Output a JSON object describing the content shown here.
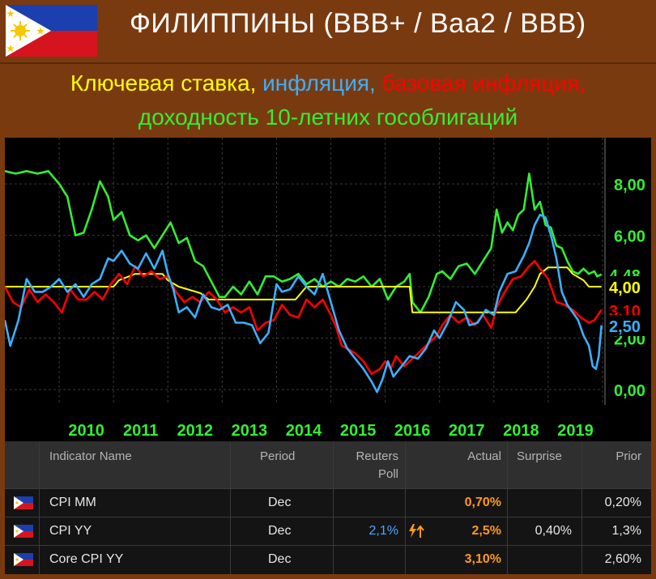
{
  "header": {
    "title": "ФИЛИППИНЫ (BBB+ / Baa2 / BBB)"
  },
  "subtitle": {
    "part1": "Ключевая ставка, ",
    "part2": "инфляция, ",
    "part3": "базовая инфляция,",
    "part4": "доходность 10-летних гособлигаций",
    "colors": {
      "part1": "#ffff00",
      "part2": "#3ab0ff",
      "part3": "#ff0000",
      "part4": "#33ee33"
    }
  },
  "chart_data": {
    "type": "line",
    "x_labels": [
      "2010",
      "2011",
      "2012",
      "2013",
      "2014",
      "2015",
      "2016",
      "2017",
      "2018",
      "2019"
    ],
    "y_ticks": [
      "8,00",
      "6,00",
      "4,00",
      "2,00",
      "0,00"
    ],
    "ylim": [
      -0.6,
      9.8
    ],
    "xlim": [
      2009.0,
      2020.0
    ],
    "grid": true,
    "end_labels": [
      {
        "text": "4,48",
        "color": "#33ee33",
        "value": 4.48
      },
      {
        "text": "4,00",
        "color": "#ffff00",
        "value": 4.0
      },
      {
        "text": "3,10",
        "color": "#ff0000",
        "value": 3.1
      },
      {
        "text": "2,50",
        "color": "#3ab0ff",
        "value": 2.5
      }
    ],
    "series": [
      {
        "color": "#33ee33",
        "points": [
          [
            2009.0,
            8.5
          ],
          [
            2009.2,
            8.4
          ],
          [
            2009.4,
            8.5
          ],
          [
            2009.6,
            8.4
          ],
          [
            2009.8,
            8.5
          ],
          [
            2010.0,
            8.0
          ],
          [
            2010.15,
            7.5
          ],
          [
            2010.3,
            6.0
          ],
          [
            2010.45,
            6.1
          ],
          [
            2010.6,
            7.0
          ],
          [
            2010.75,
            8.1
          ],
          [
            2010.9,
            7.5
          ],
          [
            2011.0,
            6.6
          ],
          [
            2011.15,
            6.9
          ],
          [
            2011.3,
            6.0
          ],
          [
            2011.45,
            5.8
          ],
          [
            2011.6,
            6.0
          ],
          [
            2011.75,
            5.5
          ],
          [
            2011.9,
            6.0
          ],
          [
            2012.05,
            6.5
          ],
          [
            2012.2,
            5.7
          ],
          [
            2012.35,
            5.9
          ],
          [
            2012.5,
            5.0
          ],
          [
            2012.65,
            4.8
          ],
          [
            2012.8,
            4.2
          ],
          [
            2012.95,
            3.6
          ],
          [
            2013.05,
            3.6
          ],
          [
            2013.2,
            4.0
          ],
          [
            2013.35,
            3.7
          ],
          [
            2013.5,
            4.2
          ],
          [
            2013.65,
            3.7
          ],
          [
            2013.8,
            4.4
          ],
          [
            2013.95,
            4.4
          ],
          [
            2014.1,
            4.2
          ],
          [
            2014.25,
            4.3
          ],
          [
            2014.4,
            4.5
          ],
          [
            2014.55,
            4.1
          ],
          [
            2014.7,
            4.3
          ],
          [
            2014.85,
            4.0
          ],
          [
            2015.0,
            4.2
          ],
          [
            2015.15,
            4.0
          ],
          [
            2015.3,
            4.3
          ],
          [
            2015.45,
            4.2
          ],
          [
            2015.6,
            4.4
          ],
          [
            2015.75,
            4.0
          ],
          [
            2015.9,
            4.3
          ],
          [
            2016.05,
            3.5
          ],
          [
            2016.2,
            4.0
          ],
          [
            2016.35,
            4.2
          ],
          [
            2016.45,
            4.5
          ],
          [
            2016.5,
            3.4
          ],
          [
            2016.65,
            3.0
          ],
          [
            2016.8,
            3.6
          ],
          [
            2016.95,
            4.5
          ],
          [
            2017.05,
            4.6
          ],
          [
            2017.2,
            4.3
          ],
          [
            2017.35,
            4.8
          ],
          [
            2017.5,
            4.9
          ],
          [
            2017.65,
            4.5
          ],
          [
            2017.8,
            5.0
          ],
          [
            2017.95,
            5.5
          ],
          [
            2018.05,
            7.0
          ],
          [
            2018.15,
            6.1
          ],
          [
            2018.25,
            6.5
          ],
          [
            2018.35,
            6.2
          ],
          [
            2018.45,
            6.8
          ],
          [
            2018.55,
            7.0
          ],
          [
            2018.65,
            8.4
          ],
          [
            2018.75,
            7.0
          ],
          [
            2018.85,
            7.3
          ],
          [
            2018.95,
            6.4
          ],
          [
            2019.05,
            6.3
          ],
          [
            2019.15,
            5.6
          ],
          [
            2019.25,
            5.5
          ],
          [
            2019.35,
            5.0
          ],
          [
            2019.45,
            4.6
          ],
          [
            2019.55,
            4.5
          ],
          [
            2019.65,
            4.7
          ],
          [
            2019.75,
            4.5
          ],
          [
            2019.85,
            4.6
          ],
          [
            2019.9,
            4.4
          ],
          [
            2019.98,
            4.48
          ]
        ]
      },
      {
        "color": "#ffff00",
        "points": [
          [
            2009.0,
            4.0
          ],
          [
            2011.0,
            4.0
          ],
          [
            2011.1,
            4.25
          ],
          [
            2011.4,
            4.5
          ],
          [
            2011.7,
            4.5
          ],
          [
            2011.9,
            4.5
          ],
          [
            2012.0,
            4.25
          ],
          [
            2012.2,
            4.0
          ],
          [
            2012.6,
            3.75
          ],
          [
            2012.75,
            3.5
          ],
          [
            2014.35,
            3.5
          ],
          [
            2014.45,
            3.75
          ],
          [
            2014.55,
            4.0
          ],
          [
            2016.45,
            4.0
          ],
          [
            2016.5,
            3.0
          ],
          [
            2018.4,
            3.0
          ],
          [
            2018.5,
            3.25
          ],
          [
            2018.6,
            3.5
          ],
          [
            2018.75,
            4.0
          ],
          [
            2018.85,
            4.5
          ],
          [
            2019.0,
            4.75
          ],
          [
            2019.35,
            4.75
          ],
          [
            2019.45,
            4.5
          ],
          [
            2019.65,
            4.25
          ],
          [
            2019.75,
            4.0
          ],
          [
            2019.98,
            4.0
          ]
        ]
      },
      {
        "color": "#ff0000",
        "points": [
          [
            2009.0,
            4.0
          ],
          [
            2009.15,
            3.4
          ],
          [
            2009.3,
            3.2
          ],
          [
            2009.45,
            3.9
          ],
          [
            2009.6,
            3.4
          ],
          [
            2009.75,
            3.7
          ],
          [
            2009.9,
            3.4
          ],
          [
            2010.05,
            3.0
          ],
          [
            2010.2,
            3.9
          ],
          [
            2010.35,
            3.5
          ],
          [
            2010.5,
            3.5
          ],
          [
            2010.65,
            3.8
          ],
          [
            2010.8,
            3.5
          ],
          [
            2010.95,
            4.1
          ],
          [
            2011.1,
            4.5
          ],
          [
            2011.25,
            4.1
          ],
          [
            2011.4,
            4.8
          ],
          [
            2011.55,
            4.4
          ],
          [
            2011.7,
            4.6
          ],
          [
            2011.85,
            4.3
          ],
          [
            2012.0,
            4.4
          ],
          [
            2012.15,
            3.8
          ],
          [
            2012.3,
            3.4
          ],
          [
            2012.45,
            3.6
          ],
          [
            2012.6,
            3.4
          ],
          [
            2012.75,
            3.8
          ],
          [
            2012.9,
            3.5
          ],
          [
            2013.05,
            3.0
          ],
          [
            2013.2,
            3.2
          ],
          [
            2013.35,
            3.0
          ],
          [
            2013.5,
            3.2
          ],
          [
            2013.65,
            2.3
          ],
          [
            2013.8,
            2.6
          ],
          [
            2013.95,
            2.7
          ],
          [
            2014.1,
            3.3
          ],
          [
            2014.25,
            2.9
          ],
          [
            2014.4,
            2.8
          ],
          [
            2014.55,
            3.5
          ],
          [
            2014.7,
            3.2
          ],
          [
            2014.85,
            3.5
          ],
          [
            2015.0,
            2.9
          ],
          [
            2015.1,
            2.4
          ],
          [
            2015.2,
            1.7
          ],
          [
            2015.3,
            1.6
          ],
          [
            2015.45,
            1.4
          ],
          [
            2015.6,
            1.1
          ],
          [
            2015.75,
            0.6
          ],
          [
            2015.9,
            0.8
          ],
          [
            2016.0,
            1.1
          ],
          [
            2016.1,
            0.8
          ],
          [
            2016.2,
            1.3
          ],
          [
            2016.35,
            0.9
          ],
          [
            2016.5,
            1.2
          ],
          [
            2016.65,
            1.5
          ],
          [
            2016.8,
            1.8
          ],
          [
            2016.95,
            2.1
          ],
          [
            2017.05,
            2.5
          ],
          [
            2017.2,
            2.9
          ],
          [
            2017.35,
            2.6
          ],
          [
            2017.5,
            2.8
          ],
          [
            2017.65,
            2.5
          ],
          [
            2017.8,
            2.9
          ],
          [
            2017.95,
            2.4
          ],
          [
            2018.05,
            3.2
          ],
          [
            2018.2,
            3.8
          ],
          [
            2018.35,
            4.3
          ],
          [
            2018.5,
            4.4
          ],
          [
            2018.65,
            4.8
          ],
          [
            2018.75,
            5.0
          ],
          [
            2018.85,
            4.7
          ],
          [
            2019.0,
            4.3
          ],
          [
            2019.15,
            3.4
          ],
          [
            2019.3,
            3.3
          ],
          [
            2019.45,
            3.1
          ],
          [
            2019.6,
            2.8
          ],
          [
            2019.75,
            2.6
          ],
          [
            2019.85,
            2.7
          ],
          [
            2019.98,
            3.1
          ]
        ]
      },
      {
        "color": "#3ab0ff",
        "points": [
          [
            2009.0,
            2.7
          ],
          [
            2009.1,
            1.7
          ],
          [
            2009.25,
            2.7
          ],
          [
            2009.4,
            4.3
          ],
          [
            2009.55,
            3.8
          ],
          [
            2009.7,
            3.8
          ],
          [
            2009.85,
            4.0
          ],
          [
            2010.0,
            4.3
          ],
          [
            2010.15,
            3.8
          ],
          [
            2010.3,
            4.1
          ],
          [
            2010.45,
            3.6
          ],
          [
            2010.6,
            4.1
          ],
          [
            2010.75,
            4.3
          ],
          [
            2010.9,
            5.1
          ],
          [
            2011.0,
            5.0
          ],
          [
            2011.15,
            5.4
          ],
          [
            2011.3,
            4.9
          ],
          [
            2011.45,
            4.7
          ],
          [
            2011.6,
            5.3
          ],
          [
            2011.75,
            4.7
          ],
          [
            2011.9,
            5.4
          ],
          [
            2012.0,
            4.5
          ],
          [
            2012.1,
            3.9
          ],
          [
            2012.2,
            3.0
          ],
          [
            2012.35,
            3.2
          ],
          [
            2012.5,
            2.8
          ],
          [
            2012.65,
            3.7
          ],
          [
            2012.8,
            3.2
          ],
          [
            2012.95,
            3.1
          ],
          [
            2013.1,
            3.3
          ],
          [
            2013.25,
            2.6
          ],
          [
            2013.4,
            2.6
          ],
          [
            2013.55,
            2.5
          ],
          [
            2013.7,
            1.8
          ],
          [
            2013.85,
            2.2
          ],
          [
            2014.0,
            4.1
          ],
          [
            2014.1,
            3.8
          ],
          [
            2014.25,
            3.9
          ],
          [
            2014.4,
            4.4
          ],
          [
            2014.55,
            4.0
          ],
          [
            2014.7,
            3.7
          ],
          [
            2014.85,
            4.5
          ],
          [
            2015.0,
            3.4
          ],
          [
            2015.15,
            2.3
          ],
          [
            2015.3,
            1.6
          ],
          [
            2015.45,
            1.2
          ],
          [
            2015.6,
            0.8
          ],
          [
            2015.75,
            0.3
          ],
          [
            2015.85,
            -0.1
          ],
          [
            2015.95,
            0.4
          ],
          [
            2016.05,
            1.1
          ],
          [
            2016.15,
            0.5
          ],
          [
            2016.3,
            0.9
          ],
          [
            2016.45,
            1.3
          ],
          [
            2016.6,
            1.2
          ],
          [
            2016.75,
            1.6
          ],
          [
            2016.9,
            2.3
          ],
          [
            2017.0,
            2.0
          ],
          [
            2017.15,
            2.6
          ],
          [
            2017.3,
            3.4
          ],
          [
            2017.45,
            3.1
          ],
          [
            2017.55,
            2.5
          ],
          [
            2017.7,
            2.6
          ],
          [
            2017.85,
            3.1
          ],
          [
            2018.0,
            2.9
          ],
          [
            2018.1,
            3.8
          ],
          [
            2018.25,
            4.5
          ],
          [
            2018.4,
            4.6
          ],
          [
            2018.55,
            5.2
          ],
          [
            2018.65,
            5.7
          ],
          [
            2018.75,
            6.4
          ],
          [
            2018.85,
            6.8
          ],
          [
            2018.95,
            6.7
          ],
          [
            2019.05,
            6.0
          ],
          [
            2019.15,
            5.1
          ],
          [
            2019.25,
            3.8
          ],
          [
            2019.35,
            3.3
          ],
          [
            2019.45,
            3.0
          ],
          [
            2019.55,
            2.7
          ],
          [
            2019.65,
            2.1
          ],
          [
            2019.75,
            1.7
          ],
          [
            2019.82,
            0.9
          ],
          [
            2019.88,
            0.8
          ],
          [
            2019.93,
            1.3
          ],
          [
            2019.98,
            2.5
          ]
        ]
      }
    ]
  },
  "table": {
    "headers": {
      "indicator": "Indicator Name",
      "period": "Period",
      "poll_line1": "Reuters",
      "poll_line2": "Poll",
      "actual": "Actual",
      "surprise": "Surprise",
      "prior": "Prior"
    },
    "rows": [
      {
        "name": "CPI MM",
        "period": "Dec",
        "poll": "",
        "actual": "0,70%",
        "surprise": "",
        "prior": "0,20%",
        "alert": false
      },
      {
        "name": "CPI YY",
        "period": "Dec",
        "poll": "2,1%",
        "actual": "2,5%",
        "surprise": "0,40%",
        "prior": "1,3%",
        "alert": true
      },
      {
        "name": "Core CPI YY",
        "period": "Dec",
        "poll": "",
        "actual": "3,10%",
        "surprise": "",
        "prior": "2,60%",
        "alert": false
      }
    ],
    "colors": {
      "poll": "#4aa8ff",
      "actual": "#ff9a1a",
      "alert": "#ff9a1a"
    }
  }
}
